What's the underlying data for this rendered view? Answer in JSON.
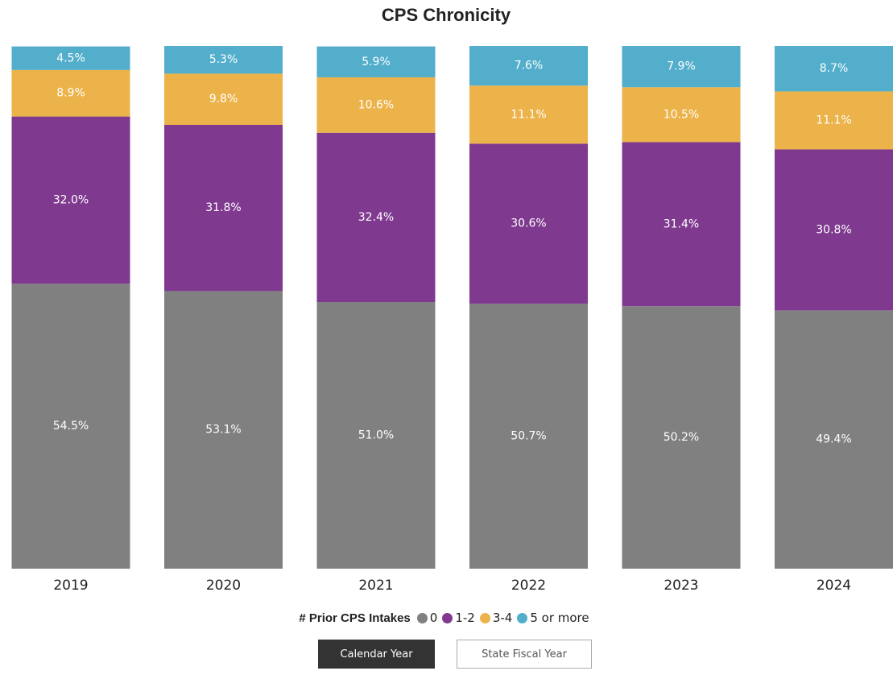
{
  "chart_data": {
    "type": "stacked_bar",
    "title": "CPS Chronicity",
    "categories": [
      "2019",
      "2020",
      "2021",
      "2022",
      "2023",
      "2024"
    ],
    "ylim": [
      0,
      100
    ],
    "legend_title": "# Prior CPS Intakes",
    "series": [
      {
        "name": "0",
        "color": "#808080",
        "values": [
          54.5,
          53.1,
          51.0,
          50.7,
          50.2,
          49.4
        ],
        "value_labels": [
          "54.5%",
          "53.1%",
          "51.0%",
          "50.7%",
          "50.2%",
          "49.4%"
        ]
      },
      {
        "name": "1-2",
        "color": "#7f3a8f",
        "values": [
          32.0,
          31.8,
          32.4,
          30.6,
          31.4,
          30.8
        ],
        "value_labels": [
          "32.0%",
          "31.8%",
          "32.4%",
          "30.6%",
          "31.4%",
          "30.8%"
        ]
      },
      {
        "name": "3-4",
        "color": "#ecb34a",
        "values": [
          8.9,
          9.8,
          10.6,
          11.1,
          10.5,
          11.1
        ],
        "value_labels": [
          "8.9%",
          "9.8%",
          "10.6%",
          "11.1%",
          "10.5%",
          "11.1%"
        ]
      },
      {
        "name": "5 or more",
        "color": "#52aecb",
        "values": [
          4.5,
          5.3,
          5.9,
          7.6,
          7.9,
          8.7
        ],
        "value_labels": [
          "4.5%",
          "5.3%",
          "5.9%",
          "7.6%",
          "7.9%",
          "8.7%"
        ]
      }
    ]
  },
  "buttons": [
    "Calendar Year",
    "State Fiscal Year"
  ]
}
